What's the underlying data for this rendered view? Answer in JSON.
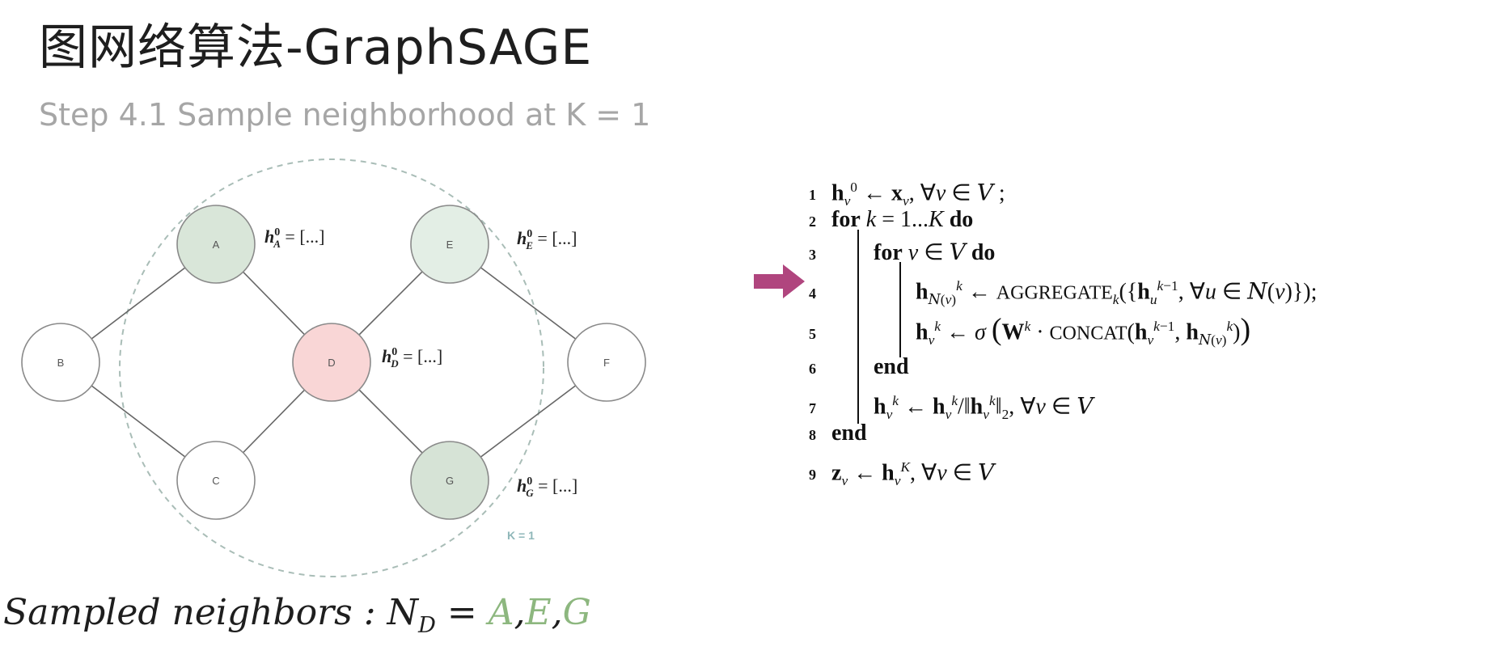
{
  "title": "图网络算法-GraphSAGE",
  "caption": "Step 4.1 Sample neighborhood at K = 1",
  "graph": {
    "nodes": [
      {
        "id": "A",
        "label": "A",
        "fill": "#d9e6d9"
      },
      {
        "id": "B",
        "label": "B",
        "fill": "#ffffff"
      },
      {
        "id": "C",
        "label": "C",
        "fill": "#ffffff"
      },
      {
        "id": "D",
        "label": "D",
        "fill": "#f9d6d6"
      },
      {
        "id": "E",
        "label": "E",
        "fill": "#e3eee5"
      },
      {
        "id": "F",
        "label": "F",
        "fill": "#ffffff"
      },
      {
        "id": "G",
        "label": "G",
        "fill": "#d6e3d6"
      }
    ],
    "edges": [
      [
        "B",
        "A"
      ],
      [
        "B",
        "C"
      ],
      [
        "A",
        "D"
      ],
      [
        "C",
        "D"
      ],
      [
        "D",
        "E"
      ],
      [
        "D",
        "G"
      ],
      [
        "E",
        "F"
      ],
      [
        "G",
        "F"
      ]
    ],
    "h_labels": {
      "A": {
        "base": "h",
        "sup": "0",
        "sub": "A",
        "rest": " = [...]"
      },
      "E": {
        "base": "h",
        "sup": "0",
        "sub": "E",
        "rest": " = [...]"
      },
      "D": {
        "base": "h",
        "sup": "0",
        "sub": "D",
        "rest": " = [...]"
      },
      "G": {
        "base": "h",
        "sup": "0",
        "sub": "G",
        "rest": " = [...]"
      }
    },
    "k_label": "K = 1",
    "colors": {
      "edge": "#666666",
      "node_stroke": "#8a8a8a",
      "circle_dash": "#a9bdb7",
      "arrow": "#b0457e"
    }
  },
  "sampled": {
    "text": "Sampled neighbors : ",
    "set_symbol": "N",
    "set_sub": "D",
    "equals": " = ",
    "members": [
      "A",
      "E",
      "G"
    ],
    "separator": ","
  },
  "algorithm": {
    "line_numbers": [
      "1",
      "2",
      "3",
      "4",
      "5",
      "6",
      "7",
      "8",
      "9"
    ],
    "keywords": {
      "for": "for",
      "do": "do",
      "end": "end",
      "aggregate": "AGGREGATE",
      "concat": "CONCAT"
    }
  }
}
